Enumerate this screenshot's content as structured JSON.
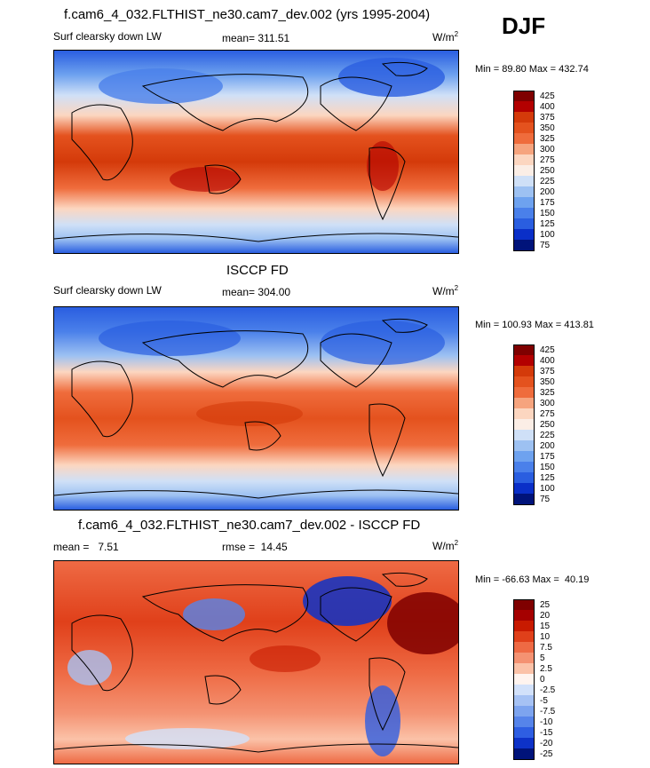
{
  "season": "DJF",
  "panels": [
    {
      "id": "model",
      "title": "f.cam6_4_032.FLTHIST_ne30.cam7_dev.002 (yrs 1995-2004)",
      "left_text": "Surf clearsky down LW",
      "center_text": "mean= 311.51",
      "units": "W/m",
      "units_sup": "2",
      "minmax": "Min =  89.80 Max = 432.74",
      "colorbar_labels": [
        "425",
        "400",
        "375",
        "350",
        "325",
        "300",
        "275",
        "250",
        "225",
        "200",
        "175",
        "150",
        "125",
        "100",
        "75"
      ]
    },
    {
      "id": "obs",
      "title": "ISCCP FD",
      "left_text": "Surf clearsky down LW",
      "center_text": "mean= 304.00",
      "units": "W/m",
      "units_sup": "2",
      "minmax": "Min = 100.93 Max = 413.81",
      "colorbar_labels": [
        "425",
        "400",
        "375",
        "350",
        "325",
        "300",
        "275",
        "250",
        "225",
        "200",
        "175",
        "150",
        "125",
        "100",
        "75"
      ]
    },
    {
      "id": "diff",
      "title": "f.cam6_4_032.FLTHIST_ne30.cam7_dev.002 - ISCCP FD",
      "left_text": "mean =   7.51",
      "center_text": "rmse =  14.45",
      "units": "W/m",
      "units_sup": "2",
      "minmax": "Min = -66.63 Max =  40.19",
      "colorbar_labels": [
        "25",
        "20",
        "15",
        "10",
        "7.5",
        "5",
        "2.5",
        "0",
        "-2.5",
        "-5",
        "-7.5",
        "-10",
        "-15",
        "-20",
        "-25"
      ]
    }
  ],
  "colors": {
    "abs_scale": [
      "#7f0000",
      "#b30000",
      "#d43a0a",
      "#e4521e",
      "#ef6c3c",
      "#f6a47e",
      "#fcd6c0",
      "#fbeee6",
      "#cfe0f7",
      "#9dc1f2",
      "#6ea2ef",
      "#4a80ea",
      "#2a5ee0",
      "#0a2fc8",
      "#00137a"
    ],
    "diff_scale": [
      "#7f0000",
      "#a50000",
      "#c81a00",
      "#e0401a",
      "#ee6a44",
      "#f49272",
      "#fbc2a8",
      "#fff4ef",
      "#d2e1fa",
      "#a6c2f4",
      "#7da4ef",
      "#5684ea",
      "#2e5ee2",
      "#0d32c8",
      "#00137a"
    ]
  }
}
